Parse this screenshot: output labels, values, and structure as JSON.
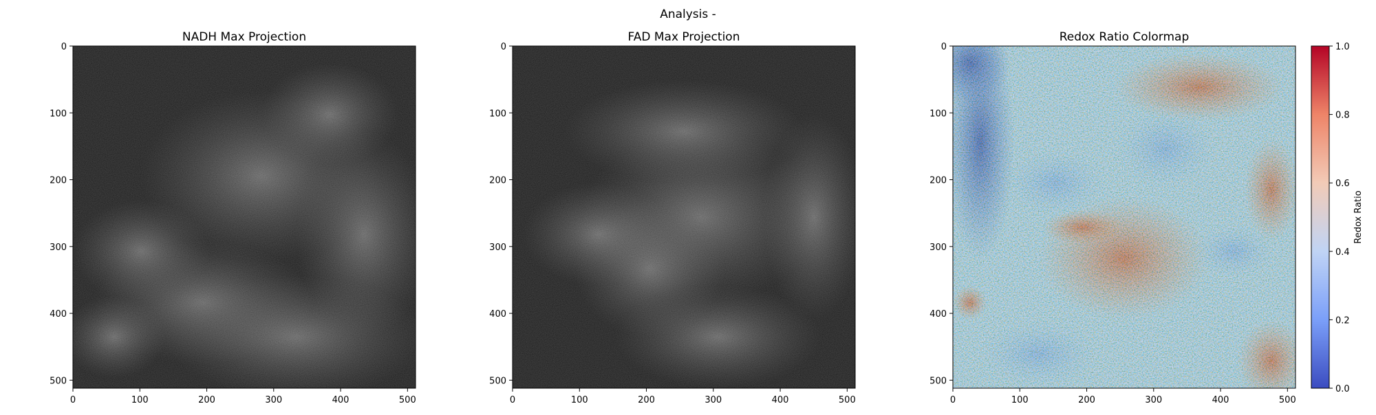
{
  "figure": {
    "suptitle": "Analysis -"
  },
  "chart_data": [
    {
      "type": "heatmap",
      "title": "NADH Max Projection",
      "xlabel": "",
      "ylabel": "",
      "image_width": 512,
      "image_height": 512,
      "xlim": [
        0,
        512
      ],
      "ylim": [
        512,
        0
      ],
      "xticks": [
        0,
        100,
        200,
        300,
        400,
        500
      ],
      "yticks": [
        0,
        100,
        200,
        300,
        400,
        500
      ],
      "colormap": "gray"
    },
    {
      "type": "heatmap",
      "title": "FAD Max Projection",
      "xlabel": "",
      "ylabel": "",
      "image_width": 512,
      "image_height": 512,
      "xlim": [
        0,
        512
      ],
      "ylim": [
        512,
        0
      ],
      "xticks": [
        0,
        100,
        200,
        300,
        400,
        500
      ],
      "yticks": [
        0,
        100,
        200,
        300,
        400,
        500
      ],
      "colormap": "gray"
    },
    {
      "type": "heatmap",
      "title": "Redox Ratio Colormap",
      "xlabel": "",
      "ylabel": "",
      "image_width": 512,
      "image_height": 512,
      "xlim": [
        0,
        512
      ],
      "ylim": [
        512,
        0
      ],
      "xticks": [
        0,
        100,
        200,
        300,
        400,
        500
      ],
      "yticks": [
        0,
        100,
        200,
        300,
        400,
        500
      ],
      "colormap": "coolwarm",
      "colorbar": {
        "label": "Redox Ratio",
        "range": [
          0.0,
          1.0
        ],
        "ticks": [
          "0.0",
          "0.2",
          "0.4",
          "0.6",
          "0.8",
          "1.0"
        ],
        "colors": [
          "#3b4cc0",
          "#7b9ff9",
          "#c0d4f5",
          "#f2cbb7",
          "#ee8468",
          "#b40426"
        ]
      }
    }
  ]
}
